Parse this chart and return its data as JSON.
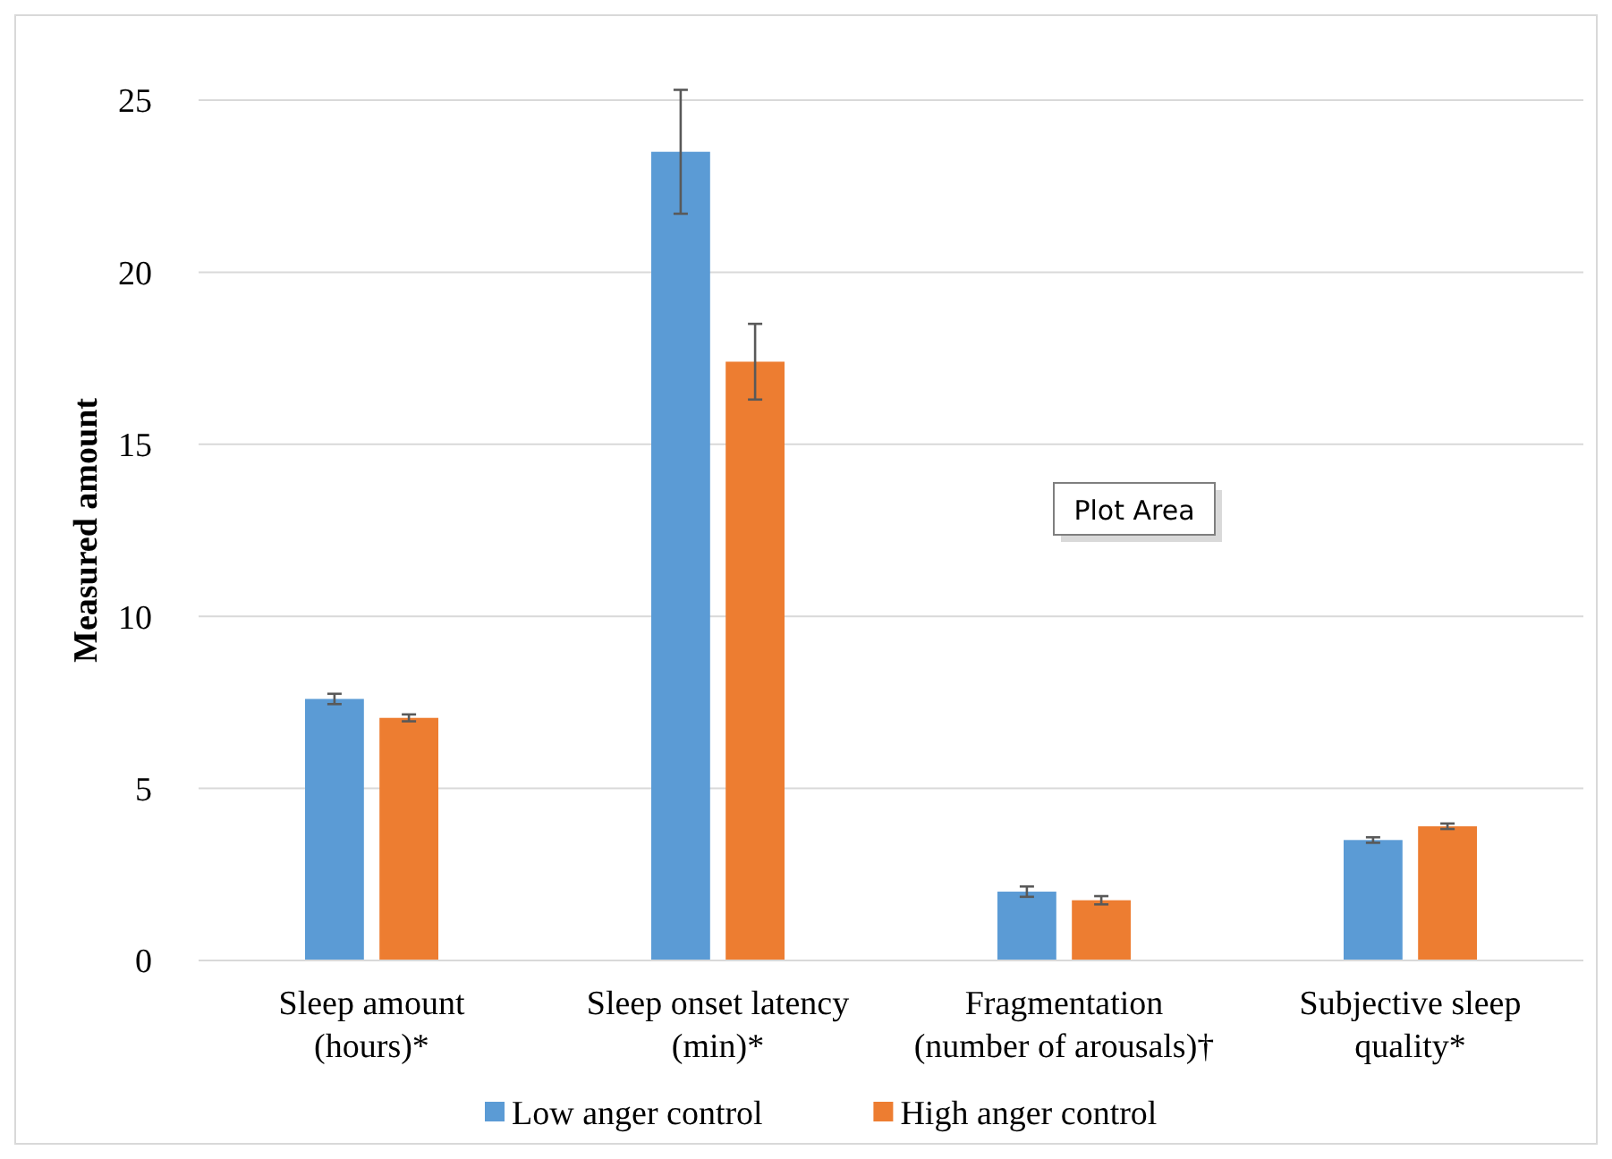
{
  "chart_data": {
    "type": "bar",
    "ylabel": "Measured amount",
    "categories": [
      "Sleep amount\n(hours)*",
      "Sleep onset latency\n(min)*",
      "Fragmentation\n(number of arousals)†",
      "Subjective sleep\nquality*"
    ],
    "series": [
      {
        "name": "Low anger control",
        "color": "#5b9bd5",
        "values": [
          7.6,
          23.5,
          2.0,
          3.5
        ],
        "errors": [
          0.15,
          1.8,
          0.15,
          0.08
        ]
      },
      {
        "name": "High anger control",
        "color": "#ed7d31",
        "values": [
          7.05,
          17.4,
          1.75,
          3.9
        ],
        "errors": [
          0.1,
          1.1,
          0.12,
          0.08
        ]
      }
    ],
    "ylim": [
      0,
      25
    ],
    "yticks": [
      0,
      5,
      10,
      15,
      20,
      25
    ],
    "grid": "y",
    "legend": "bottom",
    "annotations": [
      "Plot Area"
    ]
  }
}
